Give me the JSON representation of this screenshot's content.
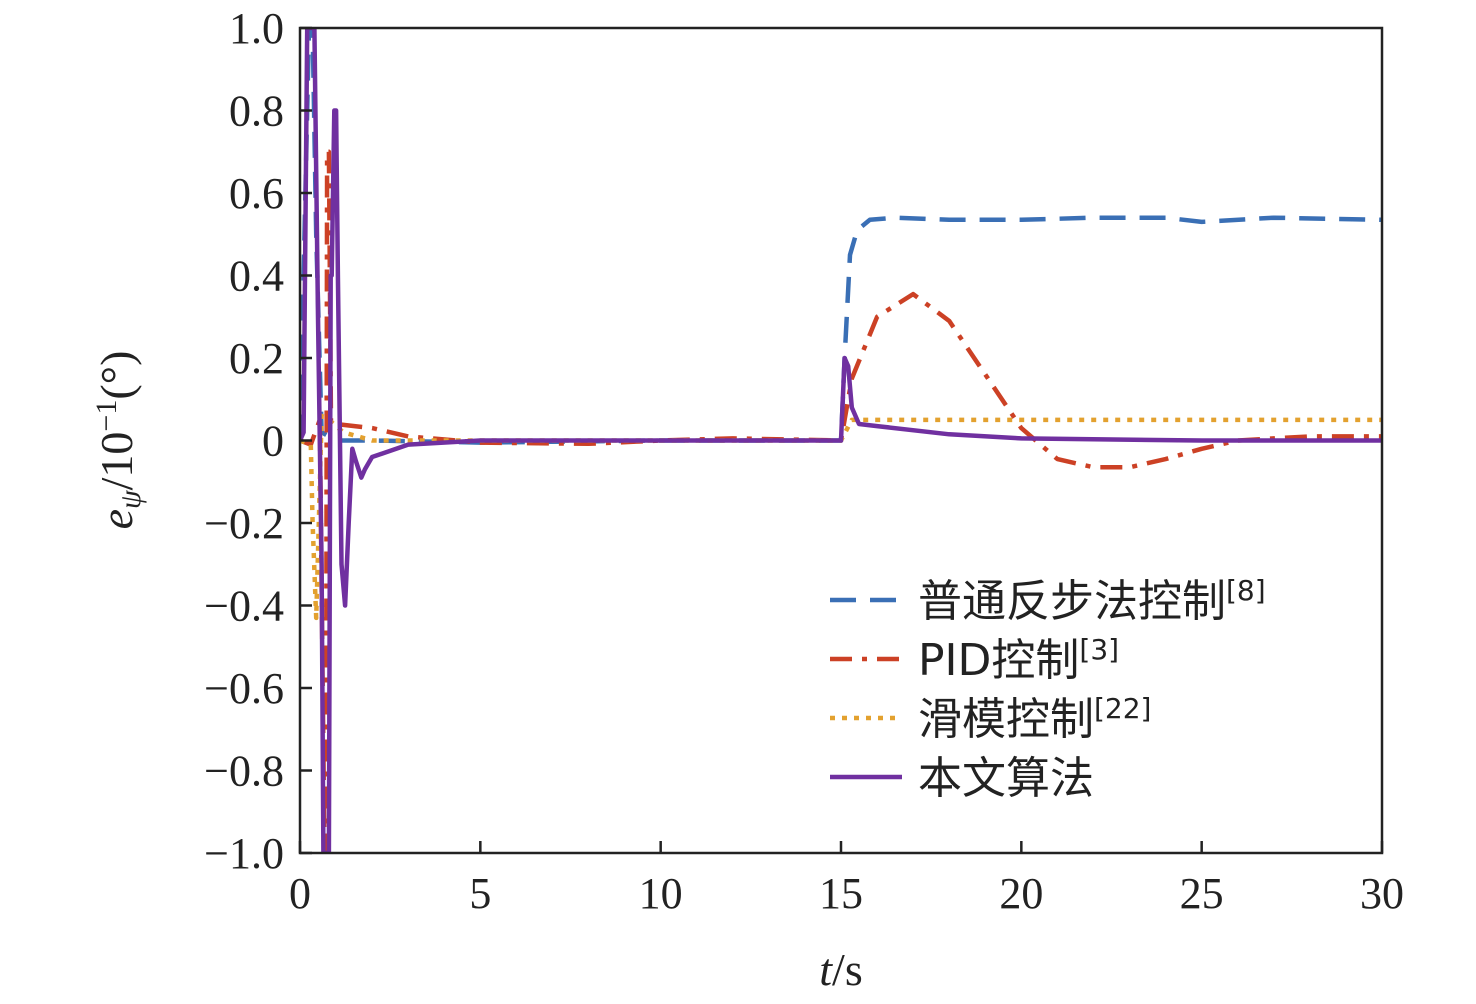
{
  "chart_data": {
    "type": "line",
    "xlabel": {
      "var": "t",
      "unit": "/s"
    },
    "ylabel": {
      "var": "e",
      "sub": "ψ",
      "unit": "/10",
      "exp": "−1",
      "tail": "(°)"
    },
    "xlim": [
      0,
      30
    ],
    "ylim": [
      -1.0,
      1.0
    ],
    "x_ticks": [
      0,
      5,
      10,
      15,
      20,
      25,
      30
    ],
    "x_tick_labels": [
      "0",
      "5",
      "10",
      "15",
      "20",
      "25",
      "30"
    ],
    "y_ticks": [
      -1.0,
      -0.8,
      -0.6,
      -0.4,
      -0.2,
      0,
      0.2,
      0.4,
      0.6,
      0.8,
      1.0
    ],
    "y_tick_labels": [
      "−1.0",
      "−0.8",
      "−0.6",
      "−0.4",
      "−0.2",
      "0",
      "0.2",
      "0.4",
      "0.6",
      "0.8",
      "1.0"
    ],
    "grid": false,
    "legend_position": "bottom-right",
    "series": [
      {
        "name": "普通反步法控制",
        "ref": "[8]",
        "color": "#3a6fb5",
        "style": "dashed",
        "points": [
          [
            0,
            0
          ],
          [
            0.25,
            1.0
          ],
          [
            0.35,
            1.0
          ],
          [
            0.45,
            0.5
          ],
          [
            0.6,
            0.02
          ],
          [
            1.0,
            0
          ],
          [
            2,
            0
          ],
          [
            5,
            -0.005
          ],
          [
            10,
            0
          ],
          [
            15,
            0
          ],
          [
            15.1,
            0.2
          ],
          [
            15.25,
            0.45
          ],
          [
            15.45,
            0.51
          ],
          [
            15.8,
            0.535
          ],
          [
            16.5,
            0.54
          ],
          [
            18,
            0.535
          ],
          [
            20,
            0.535
          ],
          [
            22,
            0.54
          ],
          [
            24,
            0.54
          ],
          [
            25,
            0.53
          ],
          [
            27,
            0.54
          ],
          [
            30,
            0.535
          ]
        ]
      },
      {
        "name": "PID控制",
        "ref": "[3]",
        "color": "#cc4125",
        "style": "dashdot",
        "points": [
          [
            0,
            0
          ],
          [
            0.3,
            -0.01
          ],
          [
            0.55,
            0.05
          ],
          [
            0.68,
            -1.0
          ],
          [
            0.72,
            -1.0
          ],
          [
            0.75,
            0.7
          ],
          [
            0.8,
            0.7
          ],
          [
            0.86,
            0.04
          ],
          [
            1.0,
            0.04
          ],
          [
            2,
            0.03
          ],
          [
            3,
            0.01
          ],
          [
            5,
            -0.005
          ],
          [
            8,
            -0.008
          ],
          [
            10,
            0
          ],
          [
            12,
            0.005
          ],
          [
            15,
            0
          ],
          [
            15.3,
            0.15
          ],
          [
            16,
            0.3
          ],
          [
            17,
            0.355
          ],
          [
            18,
            0.29
          ],
          [
            19,
            0.16
          ],
          [
            20,
            0.03
          ],
          [
            21,
            -0.045
          ],
          [
            22,
            -0.065
          ],
          [
            23,
            -0.065
          ],
          [
            24,
            -0.045
          ],
          [
            25,
            -0.02
          ],
          [
            26,
            0
          ],
          [
            27,
            0.005
          ],
          [
            28,
            0.01
          ],
          [
            30,
            0.01
          ]
        ]
      },
      {
        "name": "滑模控制",
        "ref": "[22]",
        "color": "#e3a12f",
        "style": "dotted",
        "points": [
          [
            0,
            0
          ],
          [
            0.3,
            -0.01
          ],
          [
            0.35,
            -0.2
          ],
          [
            0.45,
            -0.43
          ],
          [
            0.52,
            -0.2
          ],
          [
            0.6,
            0.06
          ],
          [
            0.8,
            0.05
          ],
          [
            1.2,
            0.02
          ],
          [
            2,
            0
          ],
          [
            5,
            0
          ],
          [
            10,
            0
          ],
          [
            15,
            0
          ],
          [
            15.3,
            0.05
          ],
          [
            20,
            0.05
          ],
          [
            25,
            0.05
          ],
          [
            30,
            0.05
          ]
        ]
      },
      {
        "name": "本文算法",
        "ref": "",
        "color": "#7030a0",
        "style": "solid",
        "points": [
          [
            0,
            0
          ],
          [
            0.1,
            0.02
          ],
          [
            0.2,
            1.0
          ],
          [
            0.4,
            1.0
          ],
          [
            0.5,
            0.3
          ],
          [
            0.6,
            -0.3
          ],
          [
            0.65,
            -1.0
          ],
          [
            0.8,
            -1.0
          ],
          [
            0.85,
            0.4
          ],
          [
            0.88,
            0.4
          ],
          [
            0.95,
            0.8
          ],
          [
            1.0,
            0.8
          ],
          [
            1.05,
            0.4
          ],
          [
            1.15,
            -0.3
          ],
          [
            1.25,
            -0.4
          ],
          [
            1.35,
            -0.2
          ],
          [
            1.45,
            -0.02
          ],
          [
            1.55,
            -0.05
          ],
          [
            1.7,
            -0.09
          ],
          [
            1.8,
            -0.07
          ],
          [
            2,
            -0.04
          ],
          [
            3,
            -0.01
          ],
          [
            5,
            0
          ],
          [
            10,
            0
          ],
          [
            15,
            0
          ],
          [
            15.1,
            0.2
          ],
          [
            15.2,
            0.18
          ],
          [
            15.3,
            0.08
          ],
          [
            15.5,
            0.04
          ],
          [
            16,
            0.035
          ],
          [
            18,
            0.015
          ],
          [
            20,
            0.005
          ],
          [
            25,
            0
          ],
          [
            30,
            0
          ]
        ]
      }
    ]
  }
}
